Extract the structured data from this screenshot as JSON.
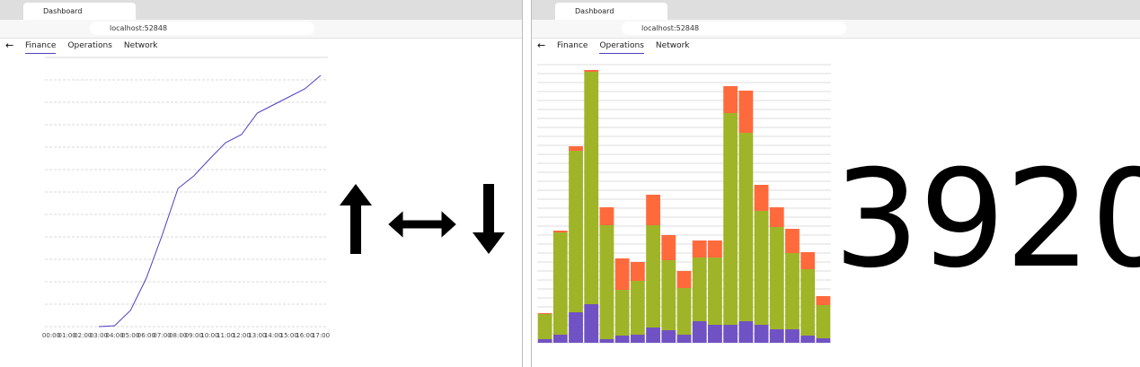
{
  "windows": [
    {
      "tab_title": "Dashboard",
      "url": "localhost:52848",
      "nav": [
        "Finance",
        "Operations",
        "Network"
      ],
      "active": 0
    },
    {
      "tab_title": "Dashboard",
      "url": "localhost:52848",
      "nav": [
        "Finance",
        "Operations",
        "Network"
      ],
      "active": 1
    }
  ],
  "chart_data": [
    {
      "type": "line",
      "color": "#4b3fc4",
      "categories": [
        "00:00",
        "01:00",
        "02:00",
        "03:00",
        "04:00",
        "05:00",
        "06:00",
        "07:00",
        "08:00",
        "09:00",
        "10:00",
        "11:00",
        "12:00",
        "13:00",
        "14:00",
        "15:00",
        "16:00",
        "17:00"
      ],
      "values": [
        null,
        null,
        null,
        0,
        1,
        18,
        54,
        102,
        154,
        168,
        187,
        205,
        214,
        238,
        247,
        256,
        265,
        280
      ],
      "ylim": [
        0,
        300
      ],
      "yticks": [
        0,
        25,
        50,
        75,
        100,
        125,
        150,
        175,
        200,
        225,
        250,
        275,
        300
      ],
      "grid": true
    },
    {
      "type": "stacked_bar",
      "series": [
        {
          "color": "#7052c4",
          "values": [
            4,
            9,
            34,
            43,
            4,
            8,
            9,
            17,
            14,
            9,
            24,
            20,
            20,
            24,
            20,
            15,
            15,
            8,
            5
          ]
        },
        {
          "color": "#a0b428",
          "values": [
            28,
            114,
            180,
            259,
            127,
            51,
            60,
            114,
            78,
            52,
            71,
            75,
            236,
            210,
            127,
            114,
            85,
            74,
            37
          ]
        },
        {
          "color": "#ff6a3d",
          "values": [
            1,
            2,
            5,
            2,
            20,
            35,
            21,
            34,
            28,
            19,
            19,
            19,
            30,
            47,
            29,
            22,
            27,
            19,
            10
          ]
        }
      ],
      "ylim": [
        0,
        316
      ],
      "yticks": [
        0,
        10,
        20,
        30,
        40,
        50,
        60,
        70,
        80,
        90,
        100,
        110,
        120,
        130,
        140,
        150,
        160,
        170,
        180,
        190,
        200,
        210,
        220,
        230,
        240,
        250,
        260,
        270,
        280,
        290,
        300,
        310
      ],
      "grid": true
    }
  ],
  "value": 3920
}
